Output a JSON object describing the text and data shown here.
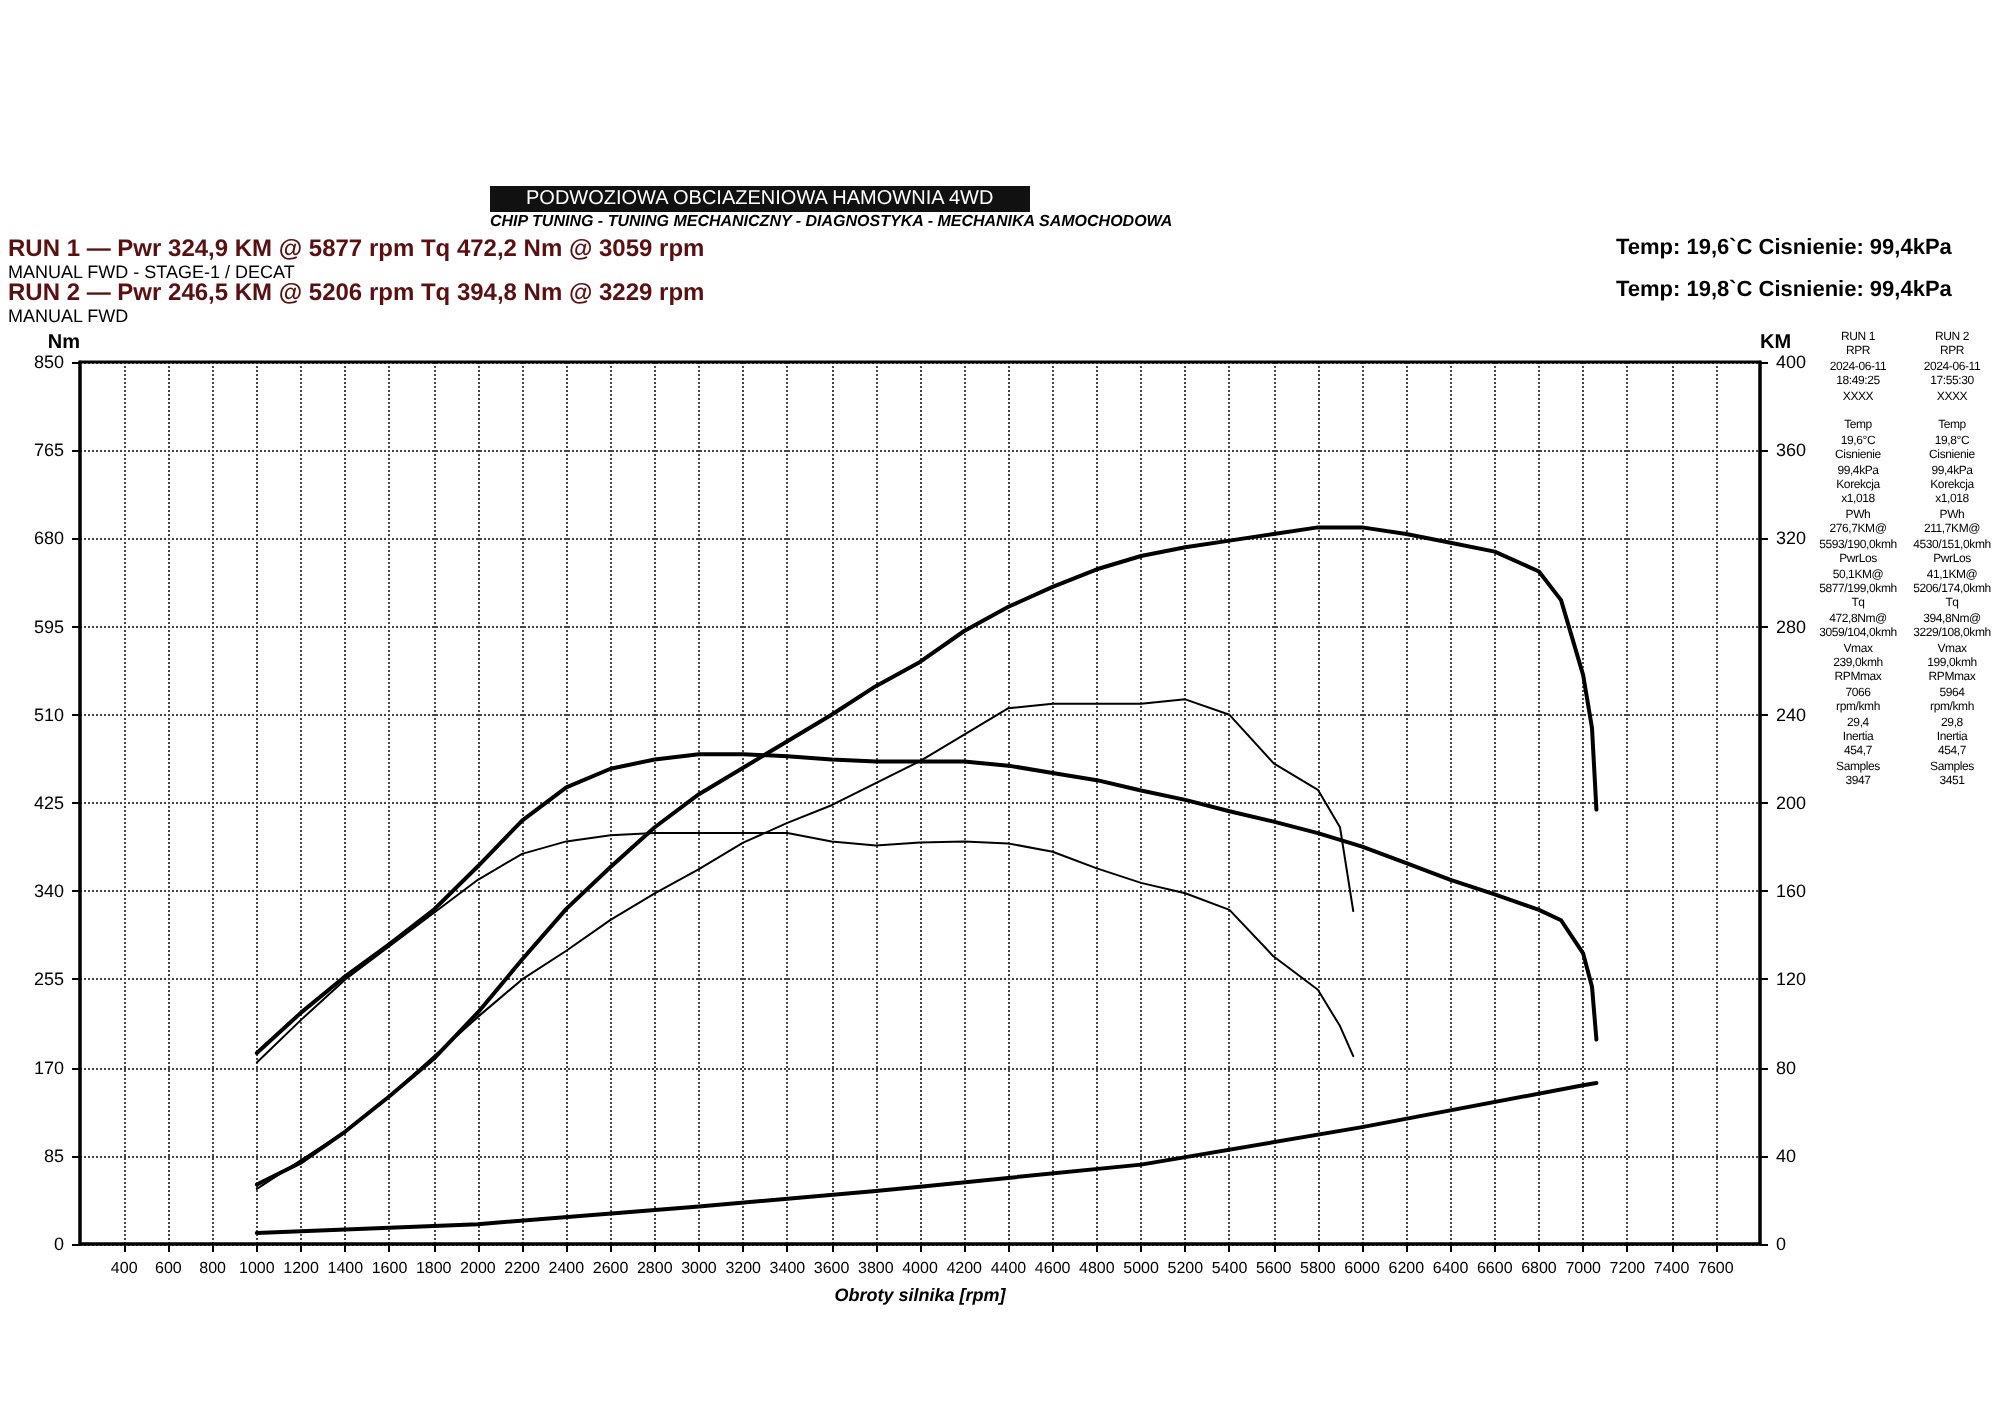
{
  "chart_data": {
    "type": "line",
    "xlabel": "Obroty silnika [rpm]",
    "ylabel": "Nm",
    "y2label": "KM",
    "annotations": [
      "PODWOZIOWA OBCIAZENIOWA HAMOWNIA 4WD",
      "CHIP TUNING - TUNING MECHANICZNY - DIAGNOSTYKA - MECHANIKA SAMOCHODOWA",
      "RUN 1 — Pwr 324,9 KM @ 5877 rpm Tq 472,2 Nm @ 3059 rpm",
      "MANUAL FWD - STAGE-1 / DECAT",
      "RUN 2 — Pwr 246,5 KM @ 5206 rpm Tq 394,8 Nm @ 3229 rpm",
      "MANUAL FWD",
      "Temp: 19,6`C Cisnienie: 99,4kPa",
      "Temp: 19,8`C Cisnienie: 99,4kPa",
      "RUN 1\nRPR\n2024-06-11\n18:49:25\nXXXX\n\nTemp\n19,6°C\nCisnienie\n99,4kPa\nKorekcja\nx1,018\nPWh\n276,7KM@\n5593/190,0kmh\nPwrLos\n50,1KM@\n5877/199,0kmh\nTq\n472,8Nm@\n3059/104,0kmh\nVmax\n239,0kmh\nRPMmax\n7066\nrpm/kmh\n29,4\nInertia\n454,7\nSamples\n3947",
      "RUN 2\nRPR\n2024-06-11\n17:55:30\nXXXX\n\nTemp\n19,8°C\nCisnienie\n99,4kPa\nKorekcja\nx1,018\nPWh\n211,7KM@\n4530/151,0kmh\nPwrLos\n41,1KM@\n5206/174,0kmh\nTq\n394,8Nm@\n3229/108,0kmh\nVmax\n199,0kmh\nRPMmax\n5964\nrpm/kmh\n29,8\nInertia\n454,7\nSamples\n3451"
    ],
    "series": [
      {
        "color": "#000000",
        "x": [
          1000,
          1200,
          1400,
          1600,
          1800,
          2000,
          2200,
          2400,
          2600,
          2800,
          3000,
          3200,
          3400,
          3600,
          3800,
          4200,
          4400,
          4600,
          4800,
          5000,
          5200,
          5400,
          5600,
          5800,
          6000,
          6200,
          6400,
          6600,
          6800,
          6900,
          7000,
          7040,
          7060
        ],
        "values": [
          184,
          223,
          258,
          289,
          322,
          364,
          408,
          440,
          458,
          467,
          472,
          472,
          470,
          467,
          465,
          465,
          461,
          454,
          447,
          437,
          428,
          417,
          407,
          396,
          383,
          367,
          351,
          337,
          322,
          312,
          280,
          248,
          197
        ]
      },
      {
        "color": "#000000",
        "axis": "y2",
        "x": [
          1000,
          1200,
          1400,
          1600,
          1800,
          2000,
          2200,
          2400,
          2600,
          2800,
          3000,
          3200,
          3400,
          3600,
          3800,
          4000,
          4200,
          4400,
          4600,
          4800,
          5000,
          5200,
          5400,
          5600,
          5800,
          6000,
          6200,
          6400,
          6600,
          6800,
          6900,
          7000,
          7040,
          7060
        ],
        "values": [
          27,
          37,
          51,
          67,
          84,
          105,
          129,
          152,
          171,
          189,
          204,
          216,
          228,
          240,
          253,
          264,
          278,
          289,
          298,
          306,
          312,
          316,
          319,
          322,
          325,
          325,
          322,
          318,
          314,
          305,
          292,
          258,
          234,
          197
        ]
      },
      {
        "color": "#000000",
        "axis": "y2",
        "x": [
          1000,
          2000,
          3000,
          3800,
          4000,
          5000,
          6000,
          7000,
          7060
        ],
        "values": [
          5,
          9,
          17,
          24,
          26,
          36,
          53,
          72,
          73
        ]
      },
      {
        "color": "#000000",
        "x": [
          1000,
          1200,
          1400,
          1600,
          1800,
          2000,
          2200,
          2400,
          2600,
          2800,
          3000,
          3200,
          3400,
          3600,
          3800,
          4000,
          4200,
          4400,
          4600,
          4800,
          5000,
          5200,
          5400,
          5600,
          5800,
          5900,
          5960
        ],
        "values": [
          175,
          216,
          255,
          287,
          319,
          351,
          376,
          388,
          394,
          396,
          396,
          396,
          396,
          388,
          384,
          387,
          388,
          386,
          378,
          362,
          348,
          338,
          322,
          277,
          245,
          210,
          181
        ]
      },
      {
        "color": "#000000",
        "axis": "y2",
        "x": [
          1000,
          1200,
          1400,
          1600,
          1800,
          2000,
          2200,
          2400,
          2600,
          2800,
          3000,
          3200,
          3400,
          3600,
          3800,
          4000,
          4200,
          4400,
          4600,
          4800,
          5000,
          5200,
          5400,
          5600,
          5800,
          5900,
          5960
        ],
        "values": [
          25,
          38,
          51,
          67,
          85,
          103,
          120,
          133,
          147,
          159,
          170,
          182,
          191,
          199,
          209,
          219,
          231,
          243,
          245,
          245,
          245,
          247,
          240,
          218,
          206,
          189,
          151
        ]
      }
    ],
    "xlim": [
      200,
      7800
    ],
    "xticks": [
      400,
      600,
      800,
      1000,
      1200,
      1400,
      1600,
      1800,
      2000,
      2200,
      2400,
      2600,
      2800,
      3000,
      3200,
      3400,
      3600,
      3800,
      4000,
      4200,
      4400,
      4600,
      4800,
      5000,
      5200,
      5400,
      5600,
      5800,
      6000,
      6200,
      6400,
      6600,
      6800,
      7000,
      7200,
      7400,
      7600
    ],
    "ylim": [
      0,
      850
    ],
    "yticks": [
      0,
      85,
      170,
      255,
      340,
      425,
      510,
      595,
      680,
      765,
      850
    ],
    "y2lim": [
      0,
      400
    ],
    "y2ticks": [
      0,
      40,
      80,
      120,
      160,
      200,
      240,
      280,
      320,
      360,
      400
    ],
    "grid": true,
    "marker": "none",
    "line_style": "solid"
  }
}
